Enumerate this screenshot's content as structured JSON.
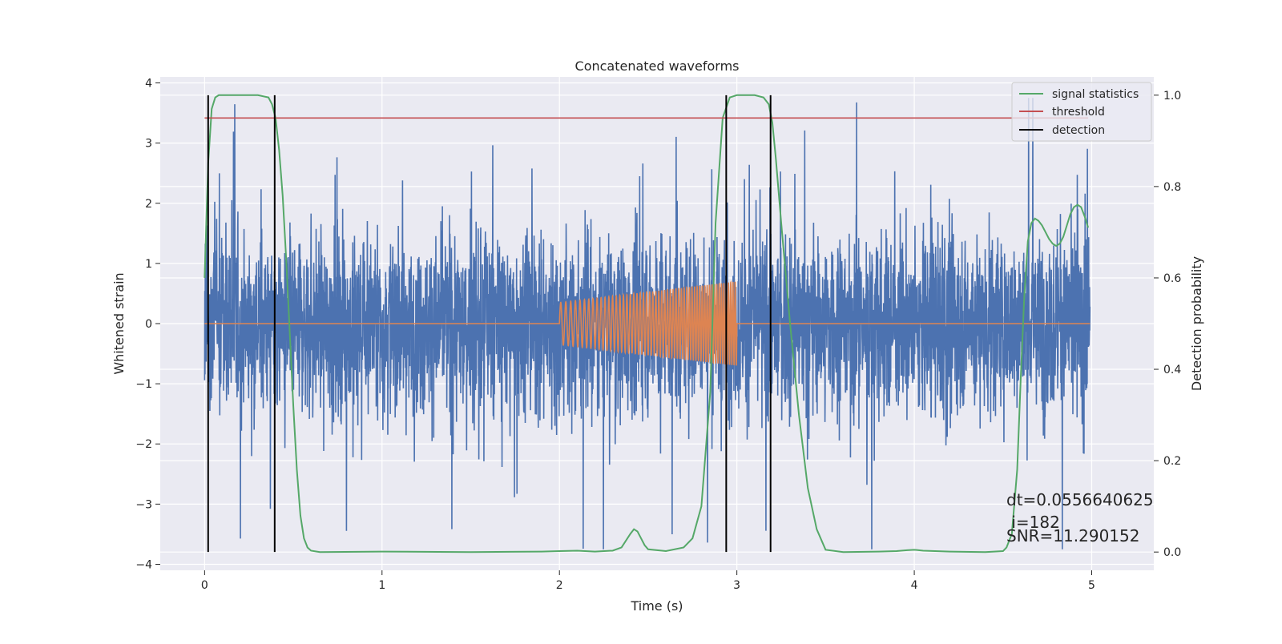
{
  "chart_data": {
    "type": "line",
    "title": "Concatenated waveforms",
    "xlabel": "Time (s)",
    "ylabel": "Whitened strain",
    "y2label": "Detection probability",
    "xlim": [
      -0.25,
      5.35
    ],
    "ylim": [
      -4.1,
      4.1
    ],
    "y2lim": [
      -0.04,
      1.04
    ],
    "xticks": [
      0,
      1,
      2,
      3,
      4,
      5
    ],
    "xtick_labels": [
      "0",
      "1",
      "2",
      "3",
      "4",
      "5"
    ],
    "yticks": [
      -4,
      -3,
      -2,
      -1,
      0,
      1,
      2,
      3,
      4
    ],
    "ytick_labels": [
      "−4",
      "−3",
      "−2",
      "−1",
      "0",
      "1",
      "2",
      "3",
      "4"
    ],
    "y2ticks": [
      0.0,
      0.2,
      0.4,
      0.6,
      0.8,
      1.0
    ],
    "y2tick_labels": [
      "0.0",
      "0.2",
      "0.4",
      "0.6",
      "0.8",
      "1.0"
    ],
    "grid": true,
    "legend_position": "top-right",
    "colors": {
      "strain": "#4c72b0",
      "injection": "#dd8452",
      "signal_statistics": "#55a868",
      "threshold": "#c44e52",
      "detection": "#000000",
      "background": "#eaeaf2",
      "grid": "#ffffff"
    },
    "legend": [
      {
        "label": "signal statistics",
        "color": "#55a868"
      },
      {
        "label": "threshold",
        "color": "#c44e52"
      },
      {
        "label": "detection",
        "color": "#000000"
      }
    ],
    "series": [
      {
        "name": "signal statistics",
        "axis": "right",
        "x": [
          0.0,
          0.02,
          0.04,
          0.06,
          0.08,
          0.1,
          0.3,
          0.36,
          0.38,
          0.4,
          0.42,
          0.44,
          0.46,
          0.48,
          0.5,
          0.52,
          0.54,
          0.56,
          0.58,
          0.6,
          0.65,
          1.0,
          1.5,
          1.9,
          2.0,
          2.1,
          2.2,
          2.3,
          2.35,
          2.4,
          2.42,
          2.44,
          2.46,
          2.48,
          2.5,
          2.6,
          2.7,
          2.75,
          2.8,
          2.85,
          2.88,
          2.92,
          2.96,
          3.0,
          3.1,
          3.15,
          3.18,
          3.2,
          3.22,
          3.25,
          3.3,
          3.35,
          3.4,
          3.45,
          3.5,
          3.6,
          3.8,
          3.9,
          3.96,
          4.0,
          4.05,
          4.2,
          4.4,
          4.5,
          4.52,
          4.55,
          4.58,
          4.6,
          4.62,
          4.64,
          4.66,
          4.68,
          4.7,
          4.72,
          4.74,
          4.76,
          4.78,
          4.8,
          4.82,
          4.84,
          4.86,
          4.88,
          4.9,
          4.92,
          4.94,
          4.96,
          4.98
        ],
        "y": [
          0.6,
          0.85,
          0.97,
          0.995,
          1.0,
          1.0,
          1.0,
          0.995,
          0.98,
          0.95,
          0.88,
          0.78,
          0.64,
          0.48,
          0.32,
          0.18,
          0.08,
          0.03,
          0.01,
          0.003,
          0.0,
          0.001,
          0.0,
          0.001,
          0.002,
          0.003,
          0.001,
          0.003,
          0.01,
          0.04,
          0.05,
          0.045,
          0.03,
          0.015,
          0.006,
          0.002,
          0.01,
          0.03,
          0.1,
          0.35,
          0.72,
          0.95,
          0.995,
          1.0,
          1.0,
          0.995,
          0.98,
          0.94,
          0.86,
          0.72,
          0.5,
          0.3,
          0.14,
          0.05,
          0.005,
          0.0,
          0.001,
          0.002,
          0.004,
          0.005,
          0.003,
          0.001,
          0.0,
          0.002,
          0.01,
          0.04,
          0.18,
          0.38,
          0.56,
          0.68,
          0.72,
          0.73,
          0.725,
          0.715,
          0.7,
          0.685,
          0.675,
          0.67,
          0.675,
          0.69,
          0.715,
          0.74,
          0.755,
          0.76,
          0.755,
          0.735,
          0.71
        ]
      },
      {
        "name": "threshold",
        "axis": "right",
        "x": [
          0.0,
          4.98
        ],
        "y": [
          0.95,
          0.95
        ]
      }
    ],
    "strain_noise": {
      "x_range": [
        0.0,
        4.99
      ],
      "typical_amplitude": 1.5,
      "max_amplitude": 3.75
    },
    "injection": {
      "x_range": [
        2.0,
        3.0
      ],
      "start_amplitude": 0.35,
      "end_amplitude": 0.7,
      "start_frequency_hz": 34,
      "end_frequency_hz": 80
    },
    "detections": [
      0.02,
      0.395,
      2.94,
      3.19
    ],
    "annotations": [
      "dt=0.0556640625",
      " i=182",
      "SNR=11.290152"
    ]
  }
}
